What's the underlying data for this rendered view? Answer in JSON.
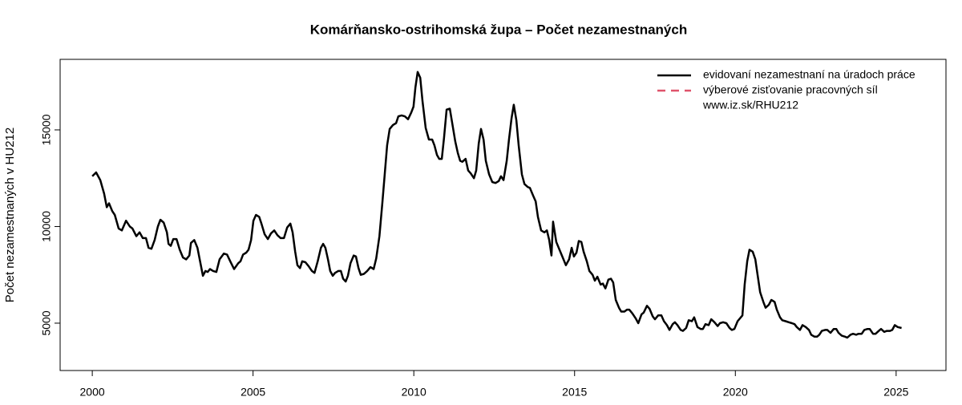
{
  "chart_data": {
    "type": "line",
    "title": "Komárňansko-ostrihomská župa – Počet nezamestnaných",
    "ylabel": "Počet nezamestnaných  v HU212",
    "xlim": [
      1999.0,
      2026.55
    ],
    "ylim": [
      2550,
      18650
    ],
    "xticks": [
      2000,
      2005,
      2010,
      2015,
      2020,
      2025
    ],
    "yticks": [
      5000,
      10000,
      15000
    ],
    "legend_position": "top-right",
    "series": [
      {
        "name": "evidovaní nezamestnaní na úradoch práce",
        "color": "#000000",
        "x": [
          2000.0,
          2000.12,
          2000.25,
          2000.37,
          2000.45,
          2000.52,
          2000.62,
          2000.7,
          2000.82,
          2000.92,
          2001.05,
          2001.17,
          2001.25,
          2001.37,
          2001.47,
          2001.57,
          2001.67,
          2001.75,
          2001.84,
          2001.94,
          2002.04,
          2002.12,
          2002.22,
          2002.32,
          2002.37,
          2002.44,
          2002.52,
          2002.62,
          2002.72,
          2002.82,
          2002.92,
          2003.02,
          2003.07,
          2003.17,
          2003.27,
          2003.34,
          2003.44,
          2003.52,
          2003.59,
          2003.66,
          2003.76,
          2003.86,
          2003.96,
          2004.09,
          2004.19,
          2004.29,
          2004.41,
          2004.54,
          2004.61,
          2004.69,
          2004.79,
          2004.86,
          2004.94,
          2005.01,
          2005.09,
          2005.19,
          2005.26,
          2005.36,
          2005.46,
          2005.56,
          2005.66,
          2005.76,
          2005.86,
          2005.96,
          2006.06,
          2006.16,
          2006.23,
          2006.31,
          2006.38,
          2006.46,
          2006.53,
          2006.63,
          2006.73,
          2006.83,
          2006.91,
          2007.01,
          2007.11,
          2007.18,
          2007.25,
          2007.33,
          2007.4,
          2007.48,
          2007.55,
          2007.65,
          2007.73,
          2007.8,
          2007.88,
          2007.95,
          2008.03,
          2008.13,
          2008.2,
          2008.28,
          2008.35,
          2008.45,
          2008.55,
          2008.65,
          2008.75,
          2008.83,
          2008.93,
          2009.02,
          2009.1,
          2009.17,
          2009.25,
          2009.35,
          2009.45,
          2009.52,
          2009.62,
          2009.72,
          2009.82,
          2009.92,
          2009.99,
          2010.05,
          2010.12,
          2010.2,
          2010.27,
          2010.37,
          2010.47,
          2010.57,
          2010.64,
          2010.72,
          2010.79,
          2010.87,
          2010.94,
          2011.02,
          2011.12,
          2011.19,
          2011.29,
          2011.37,
          2011.44,
          2011.51,
          2011.61,
          2011.69,
          2011.77,
          2011.87,
          2011.94,
          2012.02,
          2012.09,
          2012.17,
          2012.24,
          2012.34,
          2012.44,
          2012.54,
          2012.64,
          2012.71,
          2012.79,
          2012.89,
          2012.96,
          2013.04,
          2013.11,
          2013.19,
          2013.26,
          2013.36,
          2013.44,
          2013.54,
          2013.61,
          2013.71,
          2013.79,
          2013.86,
          2013.96,
          2014.06,
          2014.14,
          2014.21,
          2014.28,
          2014.33,
          2014.43,
          2014.53,
          2014.63,
          2014.73,
          2014.83,
          2014.91,
          2014.98,
          2015.06,
          2015.13,
          2015.21,
          2015.28,
          2015.38,
          2015.46,
          2015.56,
          2015.63,
          2015.71,
          2015.81,
          2015.88,
          2015.96,
          2016.05,
          2016.13,
          2016.2,
          2016.28,
          2016.38,
          2016.45,
          2016.55,
          2016.63,
          2016.7,
          2016.8,
          2016.9,
          2016.98,
          2017.08,
          2017.15,
          2017.25,
          2017.33,
          2017.43,
          2017.5,
          2017.6,
          2017.7,
          2017.78,
          2017.87,
          2017.95,
          2018.05,
          2018.12,
          2018.2,
          2018.3,
          2018.37,
          2018.47,
          2018.55,
          2018.65,
          2018.72,
          2018.82,
          2018.92,
          2018.99,
          2019.07,
          2019.17,
          2019.25,
          2019.35,
          2019.45,
          2019.52,
          2019.62,
          2019.72,
          2019.82,
          2019.89,
          2019.97,
          2020.07,
          2020.17,
          2020.22,
          2020.29,
          2020.37,
          2020.44,
          2020.54,
          2020.62,
          2020.69,
          2020.77,
          2020.87,
          2020.94,
          2021.04,
          2021.12,
          2021.22,
          2021.29,
          2021.39,
          2021.46,
          2021.56,
          2021.66,
          2021.76,
          2021.84,
          2021.91,
          2022.01,
          2022.09,
          2022.19,
          2022.29,
          2022.36,
          2022.46,
          2022.54,
          2022.61,
          2022.69,
          2022.79,
          2022.86,
          2022.96,
          2023.06,
          2023.14,
          2023.21,
          2023.31,
          2023.41,
          2023.48,
          2023.58,
          2023.66,
          2023.76,
          2023.83,
          2023.93,
          2024.01,
          2024.11,
          2024.18,
          2024.28,
          2024.36,
          2024.46,
          2024.53,
          2024.63,
          2024.71,
          2024.81,
          2024.88,
          2024.96,
          2025.05,
          2025.17
        ],
        "values": [
          12600,
          12800,
          12400,
          11700,
          11000,
          11200,
          10800,
          10600,
          9900,
          9800,
          10300,
          10000,
          9900,
          9500,
          9700,
          9400,
          9400,
          8900,
          8850,
          9300,
          10000,
          10350,
          10200,
          9700,
          9100,
          9000,
          9350,
          9350,
          8800,
          8400,
          8300,
          8500,
          9150,
          9300,
          8900,
          8300,
          7450,
          7700,
          7650,
          7800,
          7700,
          7650,
          8300,
          8600,
          8550,
          8200,
          7800,
          8100,
          8200,
          8550,
          8650,
          8800,
          9300,
          10300,
          10600,
          10500,
          10150,
          9600,
          9350,
          9650,
          9800,
          9550,
          9400,
          9400,
          9950,
          10150,
          9700,
          8700,
          8000,
          7850,
          8200,
          8150,
          7950,
          7700,
          7600,
          8200,
          8900,
          9100,
          8900,
          8300,
          7700,
          7450,
          7600,
          7700,
          7700,
          7300,
          7150,
          7450,
          8100,
          8500,
          8450,
          7850,
          7500,
          7550,
          7700,
          7900,
          7800,
          8350,
          9500,
          11200,
          12800,
          14200,
          15050,
          15250,
          15350,
          15700,
          15750,
          15700,
          15550,
          15900,
          16200,
          17200,
          18000,
          17700,
          16500,
          15100,
          14500,
          14500,
          14200,
          13700,
          13500,
          13500,
          14600,
          16050,
          16100,
          15400,
          14400,
          13800,
          13400,
          13350,
          13500,
          12900,
          12750,
          12500,
          12900,
          14300,
          15050,
          14500,
          13400,
          12700,
          12300,
          12250,
          12350,
          12600,
          12400,
          13400,
          14500,
          15600,
          16300,
          15500,
          14200,
          12700,
          12200,
          12050,
          12000,
          11600,
          11300,
          10500,
          9800,
          9700,
          9800,
          9300,
          8500,
          10250,
          9200,
          8800,
          8400,
          8000,
          8300,
          8900,
          8450,
          8650,
          9250,
          9200,
          8700,
          8200,
          7700,
          7500,
          7200,
          7400,
          7000,
          7050,
          6800,
          7250,
          7300,
          7100,
          6200,
          5800,
          5600,
          5600,
          5700,
          5700,
          5500,
          5250,
          5000,
          5450,
          5550,
          5900,
          5750,
          5350,
          5200,
          5400,
          5400,
          5100,
          4900,
          4650,
          4950,
          5050,
          4900,
          4650,
          4600,
          4750,
          5150,
          5100,
          5300,
          4800,
          4700,
          4700,
          4950,
          4900,
          5200,
          5050,
          4850,
          5000,
          5050,
          5000,
          4750,
          4650,
          4700,
          5100,
          5300,
          5400,
          7000,
          8200,
          8800,
          8700,
          8300,
          7500,
          6600,
          6100,
          5800,
          5950,
          6200,
          6100,
          5700,
          5300,
          5150,
          5100,
          5050,
          5000,
          4950,
          4800,
          4650,
          4900,
          4800,
          4650,
          4400,
          4300,
          4300,
          4400,
          4600,
          4650,
          4650,
          4500,
          4700,
          4700,
          4500,
          4350,
          4300,
          4250,
          4400,
          4450,
          4400,
          4450,
          4450,
          4650,
          4700,
          4700,
          4450,
          4450,
          4600,
          4700,
          4550,
          4600,
          4600,
          4650,
          4900,
          4800,
          4750
        ]
      }
    ],
    "legend_extra": [
      {
        "name": "výberové zisťovanie pracovných síl",
        "color": "#df536b",
        "dash": true
      },
      {
        "name": "www.iz.sk/RHU212"
      }
    ]
  }
}
